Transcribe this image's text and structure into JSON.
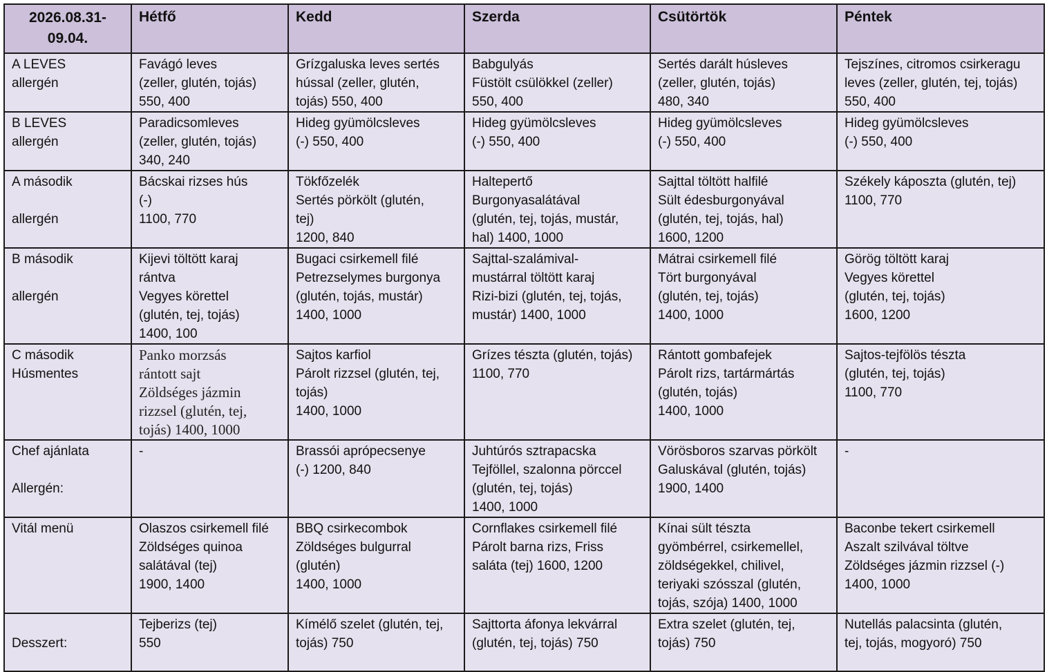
{
  "header": {
    "date_range": "2026.08.31-\n09.04.",
    "days": [
      "Hétfő",
      "Kedd",
      "Szerda",
      "Csütörtök",
      "Péntek"
    ]
  },
  "rows": [
    {
      "label_lines": [
        "A LEVES",
        "allergén"
      ],
      "cells": [
        "Favágó leves\n(zeller, glutén, tojás)\n550, 400",
        "Grízgaluska leves sertés\nhússal (zeller, glutén,\ntojás) 550, 400",
        "Babgulyás\nFüstölt csülökkel (zeller)\n550, 400",
        "Sertés darált húsleves\n(zeller, glutén, tojás)\n480, 340",
        "Tejszínes, citromos csirkeragu\nleves (zeller, glutén, tej, tojás)\n550, 400"
      ]
    },
    {
      "label_lines": [
        "B LEVES",
        "allergén"
      ],
      "cells": [
        "Paradicsomleves\n(zeller, glutén, tojás)\n340, 240",
        "Hideg gyümölcsleves\n(-) 550, 400",
        "Hideg gyümölcsleves\n(-) 550, 400",
        "Hideg gyümölcsleves\n(-) 550, 400",
        "Hideg gyümölcsleves\n(-) 550, 400"
      ]
    },
    {
      "label_lines": [
        "A második",
        "",
        "allergén"
      ],
      "cells": [
        "Bácskai rizses hús\n(-)\n1100, 770",
        "Tökfőzelék\nSertés pörkölt (glutén,\ntej)\n1200, 840",
        "Haltepertő\nBurgonyasalátával\n(glutén, tej, tojás, mustár,\nhal) 1400, 1000",
        "Sajttal töltött halfilé\nSült édesburgonyával\n(glutén, tej, tojás, hal)\n1600, 1200",
        "Székely káposzta (glutén, tej)\n1100, 770"
      ]
    },
    {
      "label_lines": [
        "B második",
        "",
        "allergén"
      ],
      "cells": [
        "Kijevi töltött karaj\nrántva\nVegyes körettel\n(glutén, tej, tojás)\n1400, 100",
        "Bugaci csirkemell filé\nPetrezselymes burgonya\n(glutén, tojás, mustár)\n1400, 1000",
        "Sajttal-szalámival-\nmustárral töltött karaj\nRizi-bizi (glutén, tej, tojás,\nmustár) 1400, 1000",
        "Mátrai csirkemell filé\nTört burgonyával\n(glutén, tej, tojás)\n1400, 1000",
        "Görög töltött karaj\nVegyes körettel\n(glutén, tej, tojás)\n1600, 1200"
      ]
    },
    {
      "label_lines": [
        "C második",
        "Húsmentes"
      ],
      "cells": [
        "Panko morzsás\nrántott sajt\nZöldséges jázmin\nrizzsel (glutén, tej,\ntojás) 1400, 1000",
        "Sajtos karfiol\nPárolt rizzsel (glutén, tej,\ntojás)\n1400, 1000",
        "Grízes tészta (glutén, tojás)\n1100, 770",
        "Rántott gombafejek\nPárolt rizs, tartármártás\n(glutén, tojás)\n1400, 1000",
        "Sajtos-tejfölös tészta\n(glutén, tej, tojás)\n1100, 770"
      ]
    },
    {
      "label_lines": [
        "Chef ajánlata",
        "",
        "Allergén:"
      ],
      "cells": [
        "-",
        "Brassói aprópecsenye\n(-) 1200, 840",
        "Juhtúrós sztrapacska\nTejföllel, szalonna pörccel\n(glutén, tej, tojás)\n1400, 1000",
        "Vörösboros szarvas pörkölt\nGaluskával (glutén, tojás)\n1900, 1400",
        "-"
      ]
    },
    {
      "label_lines": [
        "Vitál menü"
      ],
      "cells": [
        "Olaszos csirkemell filé\nZöldséges quinoa\nsalátával (tej)\n1900, 1400",
        "BBQ csirkecombok\nZöldséges bulgurral\n(glutén)\n1400, 1000",
        "Cornflakes csirkemell filé\nPárolt barna rizs, Friss\nsaláta (tej) 1600, 1200",
        "Kínai sült tészta\ngyömbérrel, csirkemellel,\nzöldségekkel, chilivel,\nteriyaki szósszal (glutén,\ntojás, szója) 1400, 1000",
        "Baconbe tekert csirkemell\nAszalt szilvával töltve\nZöldséges jázmin rizzsel (-)\n1400, 1000"
      ]
    },
    {
      "label_lines": [
        "Desszert:"
      ],
      "cells": [
        "Tejberizs (tej)\n550",
        "Kímélő szelet (glutén, tej,\ntojás) 750",
        "Sajttorta áfonya lekvárral\n(glutén, tej, tojás) 750",
        "Extra szelet (glutén, tej,\ntojás) 750",
        "Nutellás palacsinta (glutén,\ntej, tojás, mogyoró) 750"
      ]
    }
  ],
  "colors": {
    "header_bg": "#ccc0da",
    "cell_bg": "#e6e1ee",
    "border": "#1a1a1a"
  }
}
